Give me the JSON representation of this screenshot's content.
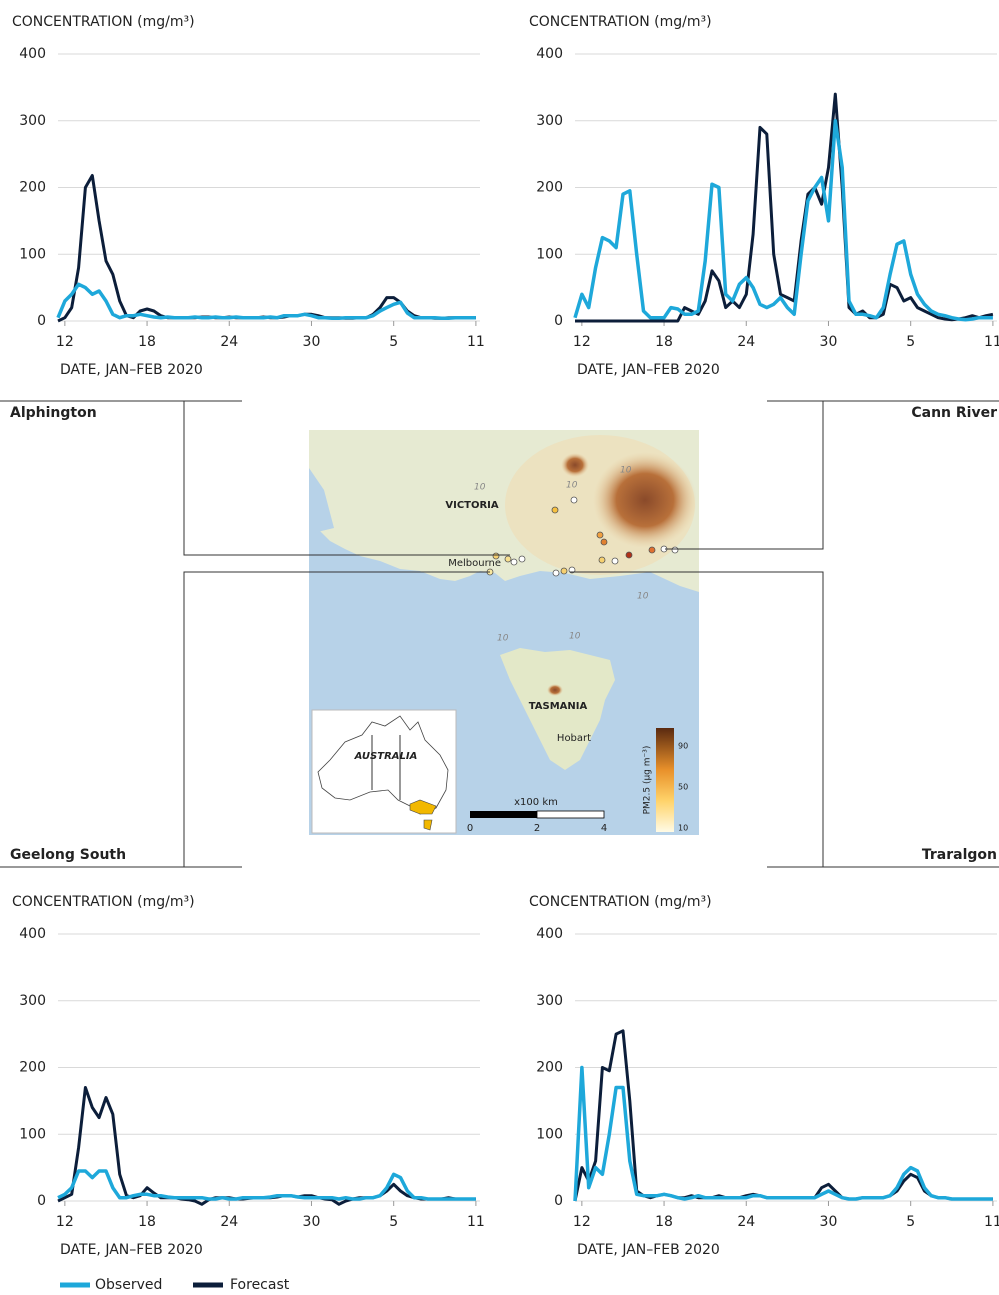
{
  "chart_data": [
    {
      "type": "line",
      "title": "Alphington",
      "ylabel": "CONCENTRATION (mg/m³)",
      "xlabel": "DATE, JAN–FEB 2020",
      "x": [
        11.5,
        12,
        12.5,
        13,
        13.5,
        14,
        14.5,
        15,
        15.5,
        16,
        16.5,
        17,
        17.5,
        18,
        18.5,
        19,
        19.5,
        20,
        20.5,
        21,
        21.5,
        22,
        22.5,
        23,
        23.5,
        24,
        24.5,
        25,
        25.5,
        26,
        26.5,
        27,
        27.5,
        28,
        28.5,
        29,
        29.5,
        30,
        30.5,
        31,
        31.5,
        32,
        32.5,
        33,
        33.5,
        34,
        34.5,
        35,
        35.5,
        36,
        36.5,
        37,
        37.5,
        38,
        38.5,
        39,
        39.5,
        40,
        40.5,
        41,
        41.5,
        42
      ],
      "xlim": [
        11.5,
        42.3
      ],
      "xticks": [
        12,
        18,
        24,
        30,
        {
          "value": 36,
          "label": "5"
        },
        {
          "value": 42,
          "label": "11"
        }
      ],
      "ylim": [
        0,
        400
      ],
      "yticks": [
        0,
        100,
        200,
        300,
        400
      ],
      "grid": true,
      "series": [
        {
          "name": "Observed",
          "color": "#1ea8da",
          "values": [
            5,
            30,
            40,
            55,
            50,
            40,
            45,
            30,
            10,
            5,
            8,
            8,
            10,
            8,
            6,
            5,
            6,
            5,
            5,
            5,
            6,
            5,
            5,
            6,
            5,
            5,
            6,
            5,
            5,
            5,
            5,
            6,
            5,
            8,
            8,
            8,
            10,
            8,
            5,
            5,
            4,
            4,
            5,
            5,
            5,
            5,
            8,
            15,
            20,
            25,
            28,
            12,
            5,
            5,
            5,
            5,
            4,
            4,
            5,
            5,
            5,
            5
          ]
        },
        {
          "name": "Forecast",
          "color": "#0c1e3a",
          "values": [
            0,
            5,
            20,
            80,
            200,
            218,
            150,
            90,
            70,
            30,
            8,
            5,
            15,
            18,
            15,
            8,
            5,
            5,
            5,
            5,
            5,
            6,
            6,
            5,
            5,
            6,
            5,
            5,
            5,
            5,
            6,
            5,
            5,
            6,
            8,
            8,
            10,
            10,
            8,
            5,
            5,
            5,
            4,
            4,
            5,
            5,
            10,
            20,
            35,
            35,
            28,
            15,
            8,
            5,
            5,
            4,
            4,
            5,
            5,
            5,
            5,
            5
          ]
        }
      ]
    },
    {
      "type": "line",
      "title": "Cann River",
      "ylabel": "CONCENTRATION (mg/m³)",
      "xlabel": "DATE, JAN–FEB 2020",
      "x": [
        11.5,
        12,
        12.5,
        13,
        13.5,
        14,
        14.5,
        15,
        15.5,
        16,
        16.5,
        17,
        17.5,
        18,
        18.5,
        19,
        19.5,
        20,
        20.5,
        21,
        21.5,
        22,
        22.5,
        23,
        23.5,
        24,
        24.5,
        25,
        25.5,
        26,
        26.5,
        27,
        27.5,
        28,
        28.5,
        29,
        29.5,
        30,
        30.5,
        31,
        31.5,
        32,
        32.5,
        33,
        33.5,
        34,
        34.5,
        35,
        35.5,
        36,
        36.5,
        37,
        37.5,
        38,
        38.5,
        39,
        39.5,
        40,
        40.5,
        41,
        41.5,
        42
      ],
      "xlim": [
        11.5,
        42.3
      ],
      "xticks": [
        12,
        18,
        24,
        30,
        {
          "value": 36,
          "label": "5"
        },
        {
          "value": 42,
          "label": "11"
        }
      ],
      "ylim": [
        0,
        400
      ],
      "yticks": [
        0,
        100,
        200,
        300,
        400
      ],
      "grid": true,
      "series": [
        {
          "name": "Observed",
          "color": "#1ea8da",
          "values": [
            5,
            40,
            20,
            80,
            125,
            120,
            110,
            190,
            195,
            100,
            15,
            5,
            5,
            5,
            20,
            18,
            10,
            10,
            15,
            90,
            205,
            200,
            40,
            30,
            55,
            65,
            50,
            25,
            20,
            25,
            35,
            20,
            10,
            100,
            180,
            200,
            215,
            150,
            300,
            230,
            30,
            10,
            10,
            8,
            5,
            20,
            70,
            115,
            120,
            70,
            40,
            25,
            15,
            10,
            8,
            5,
            3,
            2,
            3,
            5,
            5,
            5
          ]
        },
        {
          "name": "Forecast",
          "color": "#0c1e3a",
          "values": [
            0,
            0,
            0,
            0,
            0,
            0,
            0,
            0,
            0,
            0,
            0,
            0,
            0,
            0,
            0,
            0,
            20,
            15,
            10,
            30,
            75,
            60,
            20,
            30,
            20,
            40,
            130,
            290,
            280,
            100,
            40,
            35,
            30,
            120,
            190,
            200,
            175,
            230,
            340,
            200,
            20,
            10,
            15,
            5,
            5,
            10,
            55,
            50,
            30,
            35,
            20,
            15,
            10,
            5,
            3,
            2,
            3,
            5,
            8,
            5,
            8,
            10
          ]
        }
      ]
    },
    {
      "type": "line",
      "title": "Geelong South",
      "ylabel": "CONCENTRATION (mg/m³)",
      "xlabel": "DATE, JAN–FEB 2020",
      "x": [
        11.5,
        12,
        12.5,
        13,
        13.5,
        14,
        14.5,
        15,
        15.5,
        16,
        16.5,
        17,
        17.5,
        18,
        18.5,
        19,
        19.5,
        20,
        20.5,
        21,
        21.5,
        22,
        22.5,
        23,
        23.5,
        24,
        24.5,
        25,
        25.5,
        26,
        26.5,
        27,
        27.5,
        28,
        28.5,
        29,
        29.5,
        30,
        30.5,
        31,
        31.5,
        32,
        32.5,
        33,
        33.5,
        34,
        34.5,
        35,
        35.5,
        36,
        36.5,
        37,
        37.5,
        38,
        38.5,
        39,
        39.5,
        40,
        40.5,
        41,
        41.5,
        42
      ],
      "xlim": [
        11.5,
        42.3
      ],
      "xticks": [
        12,
        18,
        24,
        30,
        {
          "value": 36,
          "label": "5"
        },
        {
          "value": 42,
          "label": "11"
        }
      ],
      "ylim": [
        0,
        400
      ],
      "yticks": [
        0,
        100,
        200,
        300,
        400
      ],
      "grid": true,
      "series": [
        {
          "name": "Observed",
          "color": "#1ea8da",
          "values": [
            5,
            10,
            20,
            45,
            45,
            35,
            45,
            45,
            20,
            5,
            5,
            8,
            10,
            10,
            8,
            8,
            6,
            5,
            5,
            5,
            5,
            5,
            3,
            3,
            5,
            3,
            3,
            5,
            5,
            5,
            5,
            6,
            8,
            8,
            8,
            6,
            5,
            5,
            5,
            5,
            5,
            3,
            5,
            3,
            3,
            5,
            5,
            8,
            20,
            40,
            35,
            15,
            5,
            5,
            3,
            3,
            3,
            3,
            3,
            3,
            3,
            3
          ]
        },
        {
          "name": "Forecast",
          "color": "#0c1e3a",
          "values": [
            0,
            5,
            10,
            80,
            170,
            140,
            125,
            155,
            130,
            40,
            8,
            5,
            8,
            20,
            12,
            5,
            5,
            5,
            3,
            2,
            0,
            -5,
            2,
            5,
            5,
            5,
            3,
            3,
            4,
            5,
            5,
            5,
            6,
            8,
            8,
            6,
            8,
            8,
            5,
            3,
            2,
            -5,
            0,
            3,
            5,
            5,
            5,
            8,
            15,
            25,
            15,
            8,
            5,
            3,
            3,
            3,
            3,
            5,
            3,
            3,
            3,
            3
          ]
        }
      ]
    },
    {
      "type": "line",
      "title": "Traralgon",
      "ylabel": "CONCENTRATION (mg/m³)",
      "xlabel": "DATE, JAN–FEB 2020",
      "x": [
        11.5,
        12,
        12.5,
        13,
        13.5,
        14,
        14.5,
        15,
        15.5,
        16,
        16.5,
        17,
        17.5,
        18,
        18.5,
        19,
        19.5,
        20,
        20.5,
        21,
        21.5,
        22,
        22.5,
        23,
        23.5,
        24,
        24.5,
        25,
        25.5,
        26,
        26.5,
        27,
        27.5,
        28,
        28.5,
        29,
        29.5,
        30,
        30.5,
        31,
        31.5,
        32,
        32.5,
        33,
        33.5,
        34,
        34.5,
        35,
        35.5,
        36,
        36.5,
        37,
        37.5,
        38,
        38.5,
        39,
        39.5,
        40,
        40.5,
        41,
        41.5,
        42
      ],
      "xlim": [
        11.5,
        42.3
      ],
      "xticks": [
        12,
        18,
        24,
        30,
        {
          "value": 36,
          "label": "5"
        },
        {
          "value": 42,
          "label": "11"
        }
      ],
      "ylim": [
        0,
        400
      ],
      "yticks": [
        0,
        100,
        200,
        300,
        400
      ],
      "grid": true,
      "series": [
        {
          "name": "Observed",
          "color": "#1ea8da",
          "values": [
            0,
            200,
            20,
            50,
            40,
            100,
            170,
            170,
            60,
            10,
            8,
            8,
            8,
            10,
            8,
            5,
            3,
            5,
            8,
            5,
            5,
            5,
            5,
            5,
            5,
            5,
            8,
            8,
            5,
            5,
            5,
            5,
            5,
            5,
            5,
            5,
            10,
            15,
            10,
            5,
            3,
            3,
            5,
            5,
            5,
            5,
            8,
            20,
            40,
            50,
            45,
            20,
            8,
            5,
            5,
            3,
            3,
            3,
            3,
            3,
            3,
            3
          ]
        },
        {
          "name": "Forecast",
          "color": "#0c1e3a",
          "values": [
            0,
            50,
            30,
            60,
            200,
            195,
            250,
            255,
            150,
            15,
            8,
            5,
            8,
            10,
            8,
            5,
            5,
            8,
            5,
            5,
            5,
            8,
            5,
            5,
            5,
            8,
            10,
            8,
            5,
            5,
            5,
            5,
            5,
            5,
            5,
            5,
            20,
            25,
            15,
            5,
            3,
            3,
            5,
            5,
            5,
            5,
            8,
            15,
            30,
            40,
            35,
            15,
            8,
            5,
            5,
            3,
            3,
            3,
            3,
            3,
            3,
            3
          ]
        }
      ]
    }
  ],
  "map": {
    "region_labels": [
      "VICTORIA",
      "TASMANIA"
    ],
    "city_labels": [
      "Melbourne",
      "Hobart"
    ],
    "inset_label": "AUSTRALIA",
    "contour_labels": [
      10,
      10,
      10,
      10,
      10,
      10
    ],
    "scale": {
      "label": "x100 km",
      "ticks": [
        0,
        2,
        4
      ]
    },
    "colorbar": {
      "label": "PM2.5 (µg m⁻³)",
      "ticks": [
        90,
        50,
        10
      ]
    }
  }
}
